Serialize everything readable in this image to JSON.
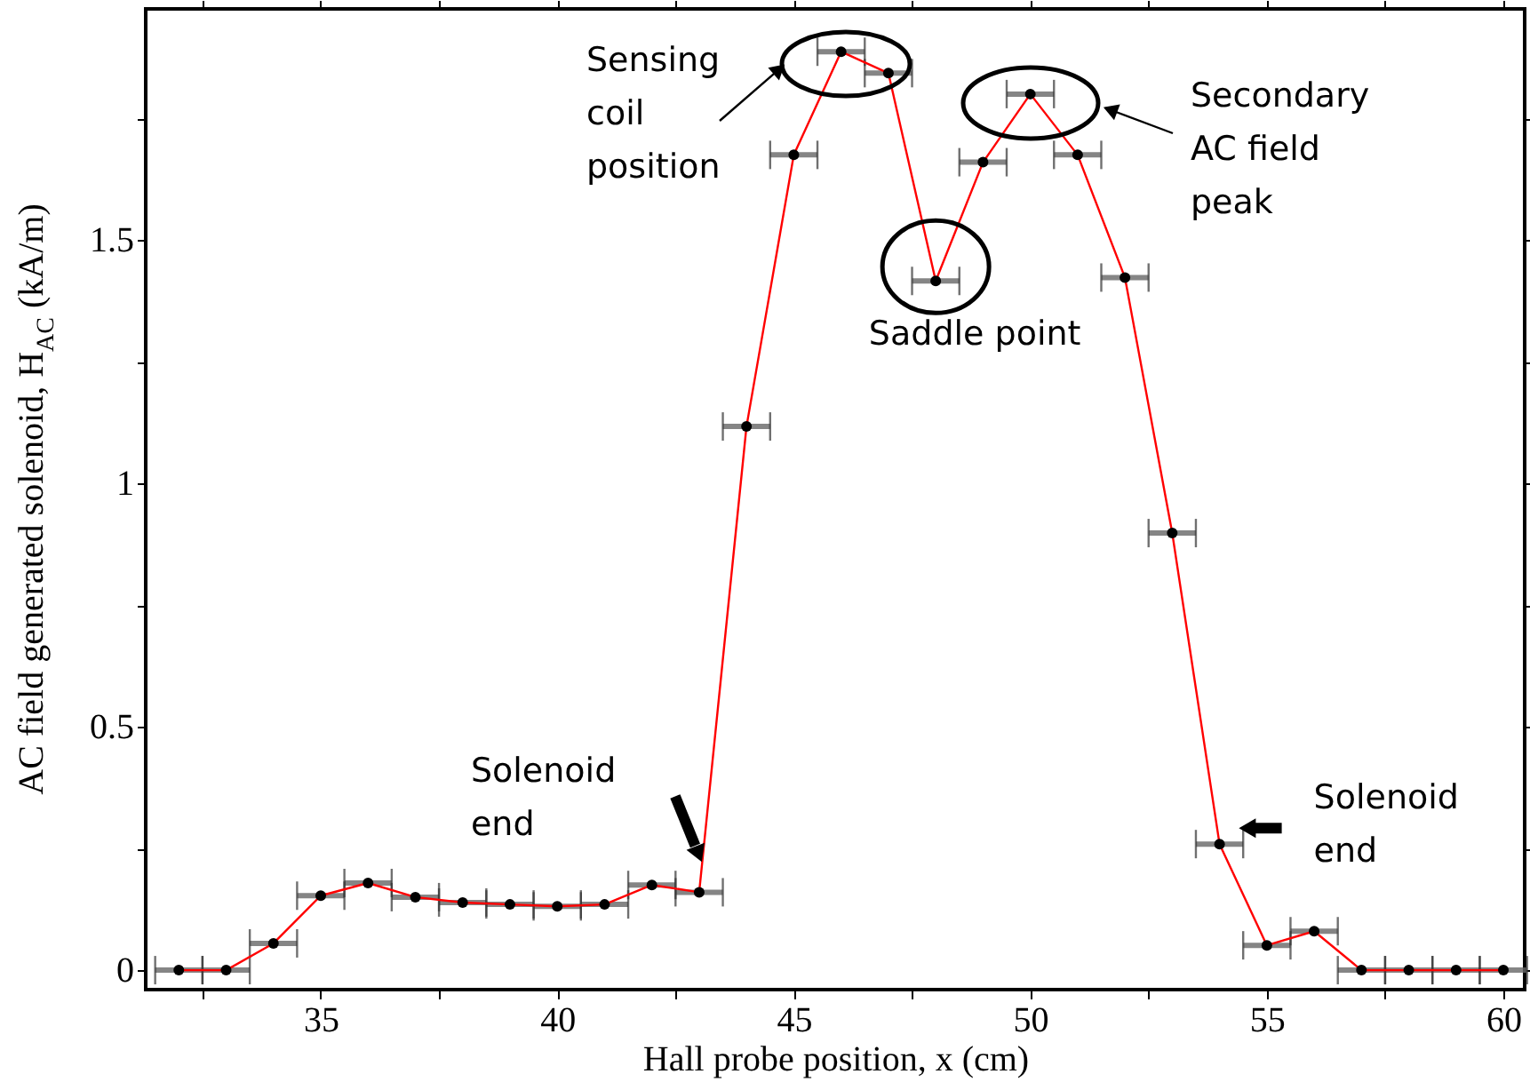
{
  "chart_data": {
    "type": "line",
    "xlabel": "Hall probe position, x (cm)",
    "ylabel": "AC field generated solenoid, H$_{AC}$ (kA/m)",
    "x": [
      32,
      33,
      34,
      35,
      36,
      37,
      38,
      39,
      40,
      41,
      42,
      43,
      44,
      45,
      46,
      47,
      48,
      49,
      50,
      51,
      52,
      53,
      54,
      55,
      56,
      57,
      58,
      59,
      60
    ],
    "series": [
      {
        "color": "#ff0000",
        "values": [
          0,
          0,
          0.055,
          0.153,
          0.179,
          0.15,
          0.139,
          0.135,
          0.131,
          0.135,
          0.175,
          0.16,
          1.117,
          1.675,
          1.887,
          1.843,
          1.416,
          1.66,
          1.8,
          1.675,
          1.423,
          0.898,
          0.259,
          0.051,
          0.08,
          0,
          0,
          0,
          0
        ],
        "xerrors": [
          0.5,
          0.5,
          0.5,
          0.5,
          0.5,
          0.5,
          0.5,
          0.5,
          0.5,
          0.5,
          0.5,
          0.5,
          0.5,
          0.5,
          0.5,
          0.5,
          0.5,
          0.5,
          0.5,
          0.5,
          0.5,
          0.5,
          0.5,
          0.5,
          0.5,
          0.5,
          0.5,
          0.5,
          0.5
        ]
      }
    ],
    "marker": "circle",
    "line_style": "solid",
    "grid": false,
    "xlim": [
      31.3,
      60.45
    ],
    "ylim": [
      -0.04,
      1.975
    ],
    "xticks": [
      {
        "value": 32.5,
        "label": null
      },
      35,
      {
        "value": 37.5,
        "label": null
      },
      40,
      {
        "value": 42.5,
        "label": null
      },
      45,
      {
        "value": 47.5,
        "label": null
      },
      50,
      {
        "value": 52.5,
        "label": null
      },
      55,
      {
        "value": 57.5,
        "label": null
      },
      60
    ],
    "yticks": [
      0,
      {
        "value": 0.25,
        "label": null
      },
      0.5,
      {
        "value": 0.75,
        "label": null
      },
      1,
      {
        "value": 1.25,
        "label": null
      },
      1.5,
      {
        "value": 1.75,
        "label": null
      }
    ],
    "annotations": [
      "Sensing\ncoil\nposition",
      {
        "text": "Saddle point",
        "x": 48,
        "y": 1.416
      },
      "Secondary\nAC field\npeak",
      {
        "text": "Solenoid\nend",
        "x": 43,
        "y": 0.16
      },
      {
        "text": "Solenoid\nend",
        "x": 54,
        "y": 0.259
      }
    ]
  }
}
